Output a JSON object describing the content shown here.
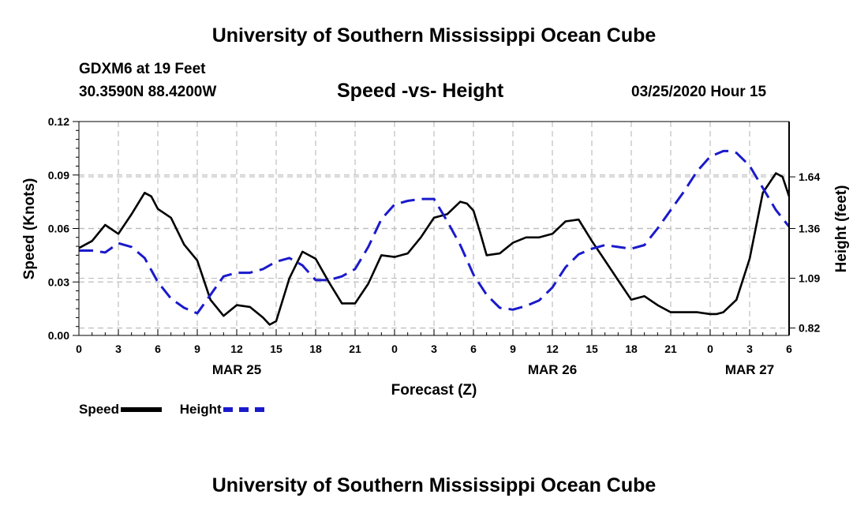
{
  "header": {
    "main_title": "University of Southern Mississippi Ocean Cube",
    "station": "GDXM6 at 19 Feet",
    "coords": "30.3590N 88.4200W",
    "chart_title": "Speed -vs- Height",
    "datetime": "03/25/2020 Hour 15"
  },
  "footer": {
    "title": "University of Southern Mississippi Ocean Cube"
  },
  "legend": {
    "speed_label": "Speed",
    "height_label": "Height"
  },
  "colors": {
    "speed": "#000000",
    "height": "#1a1acc",
    "grid": "#bdbdbd"
  },
  "chart_data": {
    "type": "line",
    "title": "Speed -vs- Height",
    "xlabel": "Forecast (Z)",
    "ylabel": "Speed (Knots)",
    "y2label": "Height (feet)",
    "x_range": [
      0,
      54
    ],
    "ylim": [
      0,
      0.12
    ],
    "y2lim": [
      0.78,
      1.94
    ],
    "grid": true,
    "x_tick_positions": [
      0,
      3,
      6,
      9,
      12,
      15,
      18,
      21,
      24,
      27,
      30,
      33,
      36,
      39,
      42,
      45,
      48,
      51,
      54
    ],
    "x_tick_labels": [
      "0",
      "3",
      "6",
      "9",
      "12",
      "15",
      "18",
      "21",
      "0",
      "3",
      "6",
      "9",
      "12",
      "15",
      "18",
      "21",
      "0",
      "3",
      "6"
    ],
    "date_labels": [
      {
        "x": 12,
        "label": "MAR 25"
      },
      {
        "x": 36,
        "label": "MAR 26"
      },
      {
        "x": 51,
        "label": "MAR 27"
      }
    ],
    "y_ticks": [
      0,
      0.03,
      0.06,
      0.09,
      0.12
    ],
    "y_tick_labels": [
      "0.00",
      "0.03",
      "0.06",
      "0.09",
      "0.12"
    ],
    "y2_ticks": [
      0.82,
      1.09,
      1.36,
      1.64
    ],
    "y2_tick_labels": [
      "0.82",
      "1.09",
      "1.36",
      "1.64"
    ],
    "series": [
      {
        "name": "Speed",
        "axis": "left",
        "style": "solid",
        "x": [
          0,
          1,
          2,
          3,
          4,
          5,
          5.5,
          6,
          7,
          8,
          9,
          10,
          11,
          12,
          13,
          14,
          14.5,
          15,
          16,
          17,
          18,
          19,
          20,
          21,
          22,
          23,
          24,
          25,
          26,
          27,
          28,
          29,
          29.5,
          30,
          30.5,
          31,
          32,
          33,
          34,
          35,
          36,
          37,
          38,
          39,
          40,
          41,
          42,
          43,
          44,
          45,
          46,
          47,
          48,
          48.5,
          49,
          50,
          51,
          52,
          53,
          53.5,
          54
        ],
        "values": [
          0.049,
          0.053,
          0.062,
          0.057,
          0.068,
          0.08,
          0.078,
          0.071,
          0.066,
          0.051,
          0.042,
          0.02,
          0.011,
          0.017,
          0.016,
          0.01,
          0.006,
          0.008,
          0.032,
          0.047,
          0.043,
          0.03,
          0.018,
          0.018,
          0.029,
          0.045,
          0.044,
          0.046,
          0.055,
          0.066,
          0.068,
          0.075,
          0.074,
          0.07,
          0.058,
          0.045,
          0.046,
          0.052,
          0.055,
          0.055,
          0.057,
          0.064,
          0.065,
          0.053,
          0.042,
          0.031,
          0.02,
          0.022,
          0.017,
          0.013,
          0.013,
          0.013,
          0.012,
          0.012,
          0.013,
          0.02,
          0.043,
          0.08,
          0.091,
          0.089,
          0.078
        ]
      },
      {
        "name": "Height",
        "axis": "right",
        "style": "dashed",
        "x": [
          0,
          1,
          2,
          3,
          4,
          5,
          6,
          7,
          8,
          9,
          10,
          11,
          12,
          13,
          14,
          15,
          16,
          17,
          18,
          19,
          20,
          21,
          22,
          23,
          24,
          25,
          26,
          27,
          28,
          29,
          30,
          31,
          32,
          33,
          34,
          35,
          36,
          37,
          38,
          39,
          40,
          41,
          42,
          43,
          44,
          45,
          46,
          47,
          48,
          49,
          49.5,
          50,
          51,
          52,
          53,
          54
        ],
        "values": [
          1.24,
          1.24,
          1.23,
          1.28,
          1.26,
          1.2,
          1.07,
          0.98,
          0.93,
          0.9,
          1.0,
          1.1,
          1.12,
          1.12,
          1.14,
          1.18,
          1.2,
          1.16,
          1.08,
          1.08,
          1.1,
          1.14,
          1.26,
          1.41,
          1.49,
          1.51,
          1.52,
          1.52,
          1.4,
          1.27,
          1.11,
          1.0,
          0.93,
          0.92,
          0.94,
          0.97,
          1.04,
          1.15,
          1.22,
          1.25,
          1.27,
          1.26,
          1.25,
          1.27,
          1.36,
          1.46,
          1.56,
          1.67,
          1.75,
          1.78,
          1.78,
          1.77,
          1.7,
          1.58,
          1.46,
          1.37
        ]
      }
    ]
  }
}
